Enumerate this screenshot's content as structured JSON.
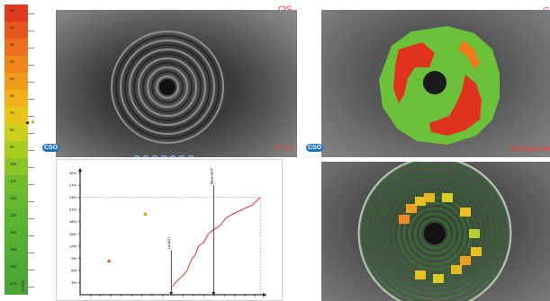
{
  "scale": {
    "labels": [
      "5s",
      "2s",
      "3s",
      "4s",
      "5s",
      "6s",
      "7s",
      "8s",
      "9s",
      "10s",
      "11s",
      "12s",
      "13s",
      "14s",
      "15s",
      "16s",
      "17s"
    ],
    "unit_label": "NIBUT",
    "colors": [
      "#e23a1f",
      "#e8561e",
      "#ec6f1d",
      "#ef861c",
      "#f09c1b",
      "#f1b11a",
      "#e9c419",
      "#cbd01d",
      "#a9cc22",
      "#8bc52a",
      "#71bd2c",
      "#66b92f",
      "#5cb531",
      "#56b132",
      "#52ad33",
      "#4ea934",
      "#4aa535"
    ]
  },
  "header": {
    "eye_label": "OS",
    "top_right_label": "C"
  },
  "panels": {
    "placido": {
      "badge": "CSO",
      "time_label": "17.5 s",
      "nav_buttons": [
        "◀◀",
        "◀",
        "◁",
        "||",
        "▷",
        "▶",
        "▶▶"
      ]
    },
    "damage": {
      "badge": "CSO",
      "label": "Damage site"
    },
    "graph": {
      "y_ticks": [
        "30%",
        "27%",
        "24%",
        "21%",
        "18%",
        "15%",
        "12%",
        "9%",
        "6%",
        "3%"
      ],
      "first_label": "1st BUT",
      "mean_label": "Mean BUT",
      "series": [
        [
          8.7,
          2
        ],
        [
          9.0,
          3
        ],
        [
          9.4,
          4
        ],
        [
          9.8,
          5
        ],
        [
          10.1,
          6
        ],
        [
          10.4,
          8
        ],
        [
          10.6,
          9
        ],
        [
          10.9,
          10
        ],
        [
          11.2,
          12
        ],
        [
          11.7,
          13
        ],
        [
          12.1,
          15
        ],
        [
          12.6,
          16
        ],
        [
          13.2,
          17
        ],
        [
          13.8,
          19
        ],
        [
          14.5,
          20
        ],
        [
          15.3,
          21
        ],
        [
          16.2,
          22
        ],
        [
          17.0,
          24
        ]
      ],
      "x_range": [
        0,
        17.5
      ],
      "y_range": [
        0,
        31
      ],
      "first_but_x": 8.6,
      "mean_but_x": 12.6,
      "dashed_y": 24
    }
  }
}
